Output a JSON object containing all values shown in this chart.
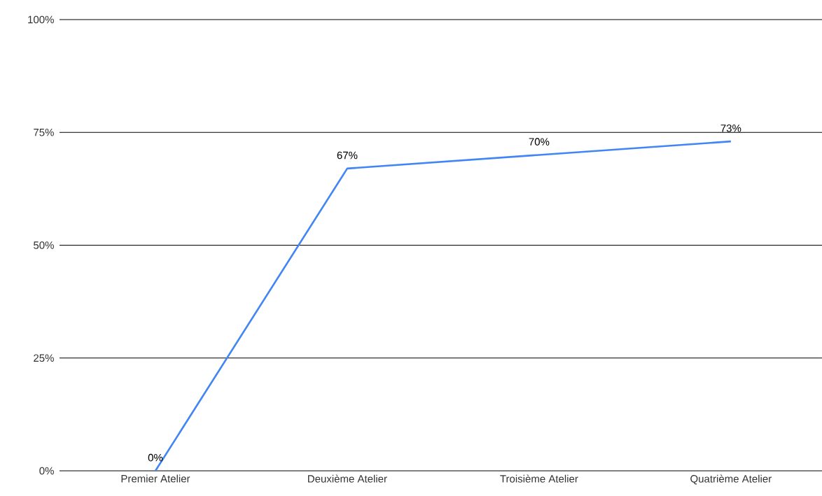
{
  "chart_data": {
    "type": "line",
    "categories": [
      "Premier Atelier",
      "Deuxième Atelier",
      "Troisième Atelier",
      "Quatrième Atelier"
    ],
    "values": [
      0,
      67,
      70,
      73
    ],
    "value_labels": [
      "0%",
      "67%",
      "70%",
      "73%"
    ],
    "color": "#4285f4",
    "ylim": [
      0,
      100
    ],
    "yticks": [
      {
        "value": 0,
        "label": "0%"
      },
      {
        "value": 25,
        "label": "25%"
      },
      {
        "value": 50,
        "label": "50%"
      },
      {
        "value": 75,
        "label": "75%"
      },
      {
        "value": 100,
        "label": "100%"
      }
    ],
    "grid": "y",
    "marker": "none",
    "line_style": "solid"
  }
}
